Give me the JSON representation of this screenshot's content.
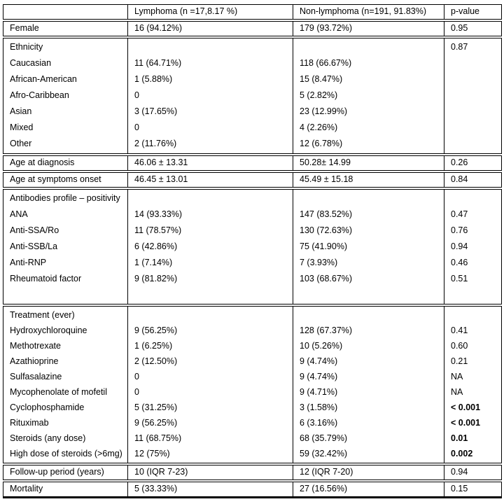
{
  "table": {
    "columns": [
      "",
      "Lymphoma (n =17,8.17 %)",
      "Non-lymphoma (n=191, 91.83%)",
      "p-value"
    ],
    "sections": [
      {
        "name": "female",
        "rows": [
          {
            "label": "Female",
            "lymphoma": "16 (94.12%)",
            "non_lymphoma": "179 (93.72%)",
            "p": "0.95"
          }
        ]
      },
      {
        "name": "ethnicity",
        "rows": [
          {
            "label": "Ethnicity",
            "lymphoma": "",
            "non_lymphoma": "",
            "p": "0.87"
          },
          {
            "label": "Caucasian",
            "lymphoma": "11 (64.71%)",
            "non_lymphoma": "118 (66.67%)",
            "p": ""
          },
          {
            "label": "African-American",
            "lymphoma": "1 (5.88%)",
            "non_lymphoma": "15 (8.47%)",
            "p": ""
          },
          {
            "label": "Afro-Caribbean",
            "lymphoma": "0",
            "non_lymphoma": "5 (2.82%)",
            "p": ""
          },
          {
            "label": "Asian",
            "lymphoma": "3 (17.65%)",
            "non_lymphoma": "23 (12.99%)",
            "p": ""
          },
          {
            "label": "Mixed",
            "lymphoma": "0",
            "non_lymphoma": "4 (2.26%)",
            "p": ""
          },
          {
            "label": "Other",
            "lymphoma": "2 (11.76%)",
            "non_lymphoma": "12 (6.78%)",
            "p": ""
          }
        ]
      },
      {
        "name": "age-at-diagnosis",
        "rows": [
          {
            "label": "Age at diagnosis",
            "lymphoma": "46.06 ± 13.31",
            "non_lymphoma": "50.28± 14.99",
            "p": "0.26"
          }
        ]
      },
      {
        "name": "age-at-symptoms-onset",
        "rows": [
          {
            "label": "Age at symptoms onset",
            "lymphoma": "46.45 ± 13.01",
            "non_lymphoma": "45.49 ± 15.18",
            "p": "0.84"
          }
        ]
      },
      {
        "name": "antibodies",
        "rows": [
          {
            "label": "Antibodies profile – positivity",
            "lymphoma": "",
            "non_lymphoma": "",
            "p": ""
          },
          {
            "label": "ANA",
            "lymphoma": "14 (93.33%)",
            "non_lymphoma": "147 (83.52%)",
            "p": "0.47"
          },
          {
            "label": "Anti-SSA/Ro",
            "lymphoma": "11 (78.57%)",
            "non_lymphoma": "130 (72.63%)",
            "p": "0.76"
          },
          {
            "label": "Anti-SSB/La",
            "lymphoma": "6 (42.86%)",
            "non_lymphoma": "75 (41.90%)",
            "p": "0.94"
          },
          {
            "label": "Anti-RNP",
            "lymphoma": "1 (7.14%)",
            "non_lymphoma": "7 (3.93%)",
            "p": "0.46"
          },
          {
            "label": "Rheumatoid factor",
            "lymphoma": "9 (81.82%)",
            "non_lymphoma": "103 (68.67%)",
            "p": "0.51"
          }
        ]
      },
      {
        "name": "treatment",
        "rows": [
          {
            "label": "Treatment (ever)",
            "lymphoma": "",
            "non_lymphoma": "",
            "p": ""
          },
          {
            "label": "Hydroxychloroquine",
            "lymphoma": "9 (56.25%)",
            "non_lymphoma": "128 (67.37%)",
            "p": "0.41"
          },
          {
            "label": "Methotrexate",
            "lymphoma": "1 (6.25%)",
            "non_lymphoma": "10 (5.26%)",
            "p": "0.60"
          },
          {
            "label": "Azathioprine",
            "lymphoma": "2 (12.50%)",
            "non_lymphoma": "9 (4.74%)",
            "p": "0.21"
          },
          {
            "label": "Sulfasalazine",
            "lymphoma": "0",
            "non_lymphoma": "9 (4.74%)",
            "p": "NA"
          },
          {
            "label": "Mycophenolate of mofetil",
            "lymphoma": "0",
            "non_lymphoma": "9 (4.71%)",
            "p": "NA"
          },
          {
            "label": "Cyclophosphamide",
            "lymphoma": "5 (31.25%)",
            "non_lymphoma": "3 (1.58%)",
            "p": "< 0.001",
            "p_bold": true
          },
          {
            "label": "Rituximab",
            "lymphoma": "9 (56.25%)",
            "non_lymphoma": "6 (3.16%)",
            "p": "< 0.001",
            "p_bold": true
          },
          {
            "label": "Steroids (any dose)",
            "lymphoma": "11 (68.75%)",
            "non_lymphoma": "68 (35.79%)",
            "p": "0.01",
            "p_bold": true
          },
          {
            "label": "High dose of steroids (>6mg)",
            "lymphoma": "12 (75%)",
            "non_lymphoma": "59 (32.42%)",
            "p": "0.002",
            "p_bold": true
          }
        ]
      },
      {
        "name": "follow-up-period",
        "rows": [
          {
            "label": "Follow-up period (years)",
            "lymphoma": "10 (IQR 7-23)",
            "non_lymphoma": "12 (IQR 7-20)",
            "p": "0.94"
          }
        ]
      },
      {
        "name": "mortality",
        "rows": [
          {
            "label": "Mortality",
            "lymphoma": "5 (33.33%)",
            "non_lymphoma": "27 (16.56%)",
            "p": "0.15"
          }
        ]
      }
    ]
  }
}
